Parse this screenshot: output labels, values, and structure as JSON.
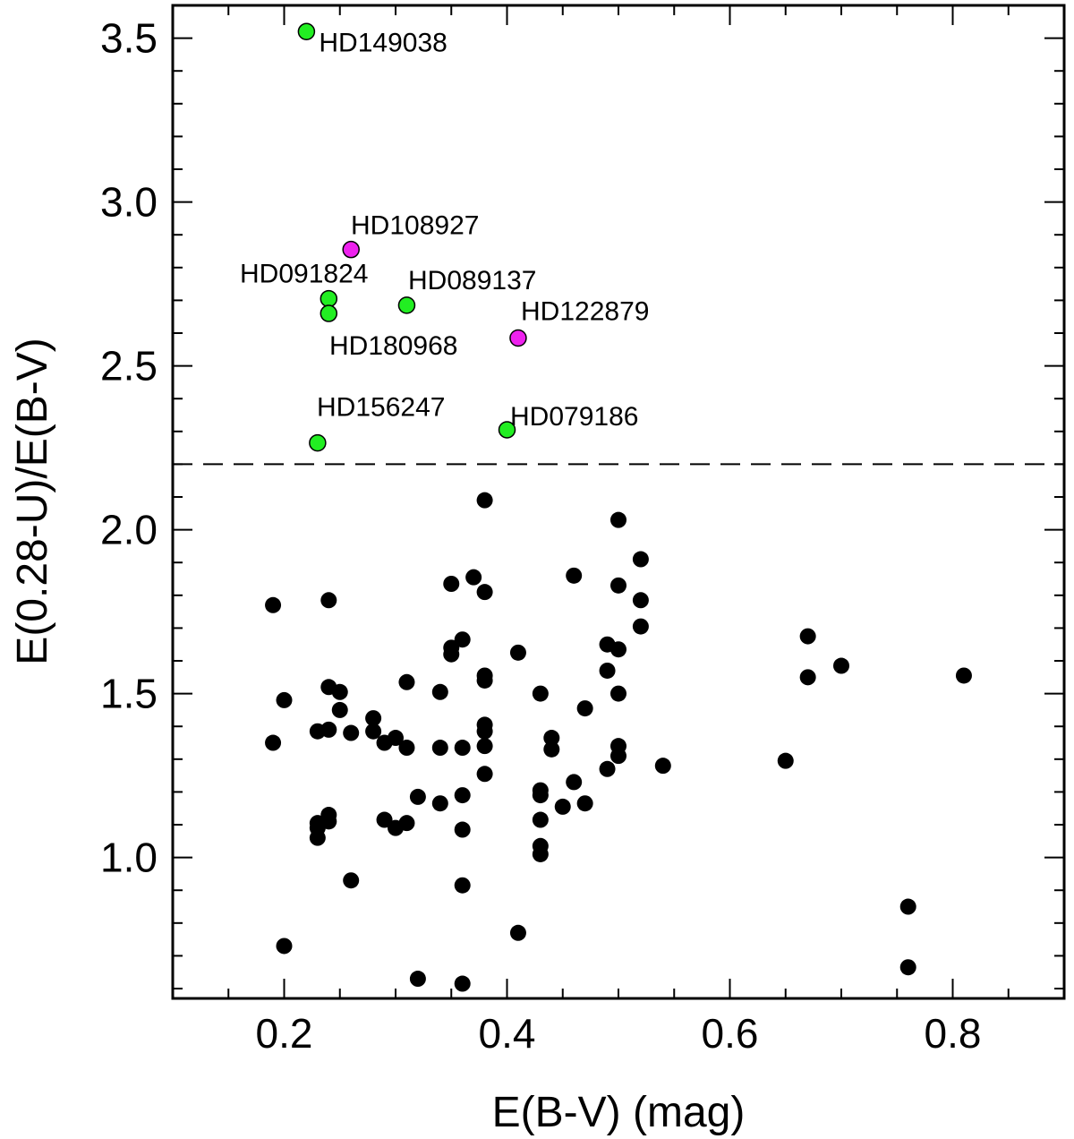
{
  "chart_data": {
    "type": "scatter",
    "xlabel": "E(B-V) (mag)",
    "ylabel": "E(0.28-U)/E(B-V)",
    "xlim": [
      0.1,
      0.9
    ],
    "ylim": [
      0.57,
      3.6
    ],
    "x_ticks": [
      0.2,
      0.4,
      0.6,
      0.8
    ],
    "x_tick_labels": [
      "0.2",
      "0.4",
      "0.6",
      "0.8"
    ],
    "y_ticks": [
      1.0,
      1.5,
      2.0,
      2.5,
      3.0,
      3.5
    ],
    "y_tick_labels": [
      "1.0",
      "1.5",
      "2.0",
      "2.5",
      "3.0",
      "3.5"
    ],
    "threshold_line": {
      "y": 2.2,
      "style": "dashed"
    },
    "grid": false,
    "colors": {
      "black": "#000000",
      "green": "#22ee22",
      "magenta": "#ee22ee"
    },
    "highlighted": [
      {
        "name": "HD149038",
        "x": 0.22,
        "y": 3.52,
        "color": "green"
      },
      {
        "name": "HD108927",
        "x": 0.26,
        "y": 2.855,
        "color": "magenta"
      },
      {
        "name": "HD091824",
        "x": 0.24,
        "y": 2.705,
        "color": "green"
      },
      {
        "name": "HD180968",
        "x": 0.24,
        "y": 2.66,
        "color": "green"
      },
      {
        "name": "HD089137",
        "x": 0.31,
        "y": 2.685,
        "color": "green"
      },
      {
        "name": "HD122879",
        "x": 0.41,
        "y": 2.585,
        "color": "magenta"
      },
      {
        "name": "HD156247",
        "x": 0.23,
        "y": 2.265,
        "color": "green"
      },
      {
        "name": "HD079186",
        "x": 0.4,
        "y": 2.305,
        "color": "green"
      }
    ],
    "points": [
      [
        0.19,
        1.77
      ],
      [
        0.19,
        1.35
      ],
      [
        0.2,
        1.48
      ],
      [
        0.2,
        0.73
      ],
      [
        0.23,
        1.385
      ],
      [
        0.23,
        1.105
      ],
      [
        0.23,
        1.06
      ],
      [
        0.23,
        1.09
      ],
      [
        0.24,
        1.785
      ],
      [
        0.24,
        1.52
      ],
      [
        0.24,
        1.39
      ],
      [
        0.24,
        1.13
      ],
      [
        0.24,
        1.11
      ],
      [
        0.25,
        1.505
      ],
      [
        0.25,
        1.45
      ],
      [
        0.26,
        1.38
      ],
      [
        0.26,
        0.93
      ],
      [
        0.28,
        1.425
      ],
      [
        0.28,
        1.385
      ],
      [
        0.29,
        1.35
      ],
      [
        0.29,
        1.115
      ],
      [
        0.3,
        1.365
      ],
      [
        0.3,
        1.09
      ],
      [
        0.31,
        1.535
      ],
      [
        0.31,
        1.335
      ],
      [
        0.31,
        1.105
      ],
      [
        0.32,
        1.185
      ],
      [
        0.32,
        0.63
      ],
      [
        0.34,
        1.505
      ],
      [
        0.34,
        1.335
      ],
      [
        0.34,
        1.165
      ],
      [
        0.35,
        1.835
      ],
      [
        0.35,
        1.64
      ],
      [
        0.35,
        1.62
      ],
      [
        0.36,
        1.665
      ],
      [
        0.36,
        1.335
      ],
      [
        0.36,
        1.19
      ],
      [
        0.36,
        1.085
      ],
      [
        0.36,
        0.915
      ],
      [
        0.36,
        0.615
      ],
      [
        0.37,
        1.855
      ],
      [
        0.38,
        2.09
      ],
      [
        0.38,
        1.81
      ],
      [
        0.38,
        1.555
      ],
      [
        0.38,
        1.54
      ],
      [
        0.38,
        1.405
      ],
      [
        0.38,
        1.385
      ],
      [
        0.38,
        1.34
      ],
      [
        0.38,
        1.255
      ],
      [
        0.41,
        1.625
      ],
      [
        0.41,
        0.77
      ],
      [
        0.43,
        1.5
      ],
      [
        0.43,
        1.205
      ],
      [
        0.43,
        1.19
      ],
      [
        0.43,
        1.115
      ],
      [
        0.43,
        1.035
      ],
      [
        0.43,
        1.01
      ],
      [
        0.44,
        1.365
      ],
      [
        0.44,
        1.33
      ],
      [
        0.45,
        1.155
      ],
      [
        0.46,
        1.86
      ],
      [
        0.46,
        1.23
      ],
      [
        0.47,
        1.455
      ],
      [
        0.47,
        1.165
      ],
      [
        0.49,
        1.65
      ],
      [
        0.49,
        1.57
      ],
      [
        0.49,
        1.27
      ],
      [
        0.5,
        2.03
      ],
      [
        0.5,
        1.83
      ],
      [
        0.5,
        1.635
      ],
      [
        0.5,
        1.5
      ],
      [
        0.5,
        1.34
      ],
      [
        0.5,
        1.31
      ],
      [
        0.52,
        1.91
      ],
      [
        0.52,
        1.785
      ],
      [
        0.52,
        1.705
      ],
      [
        0.54,
        1.28
      ],
      [
        0.65,
        1.295
      ],
      [
        0.67,
        1.675
      ],
      [
        0.67,
        1.55
      ],
      [
        0.7,
        1.585
      ],
      [
        0.76,
        0.85
      ],
      [
        0.76,
        0.665
      ],
      [
        0.81,
        1.555
      ]
    ]
  }
}
